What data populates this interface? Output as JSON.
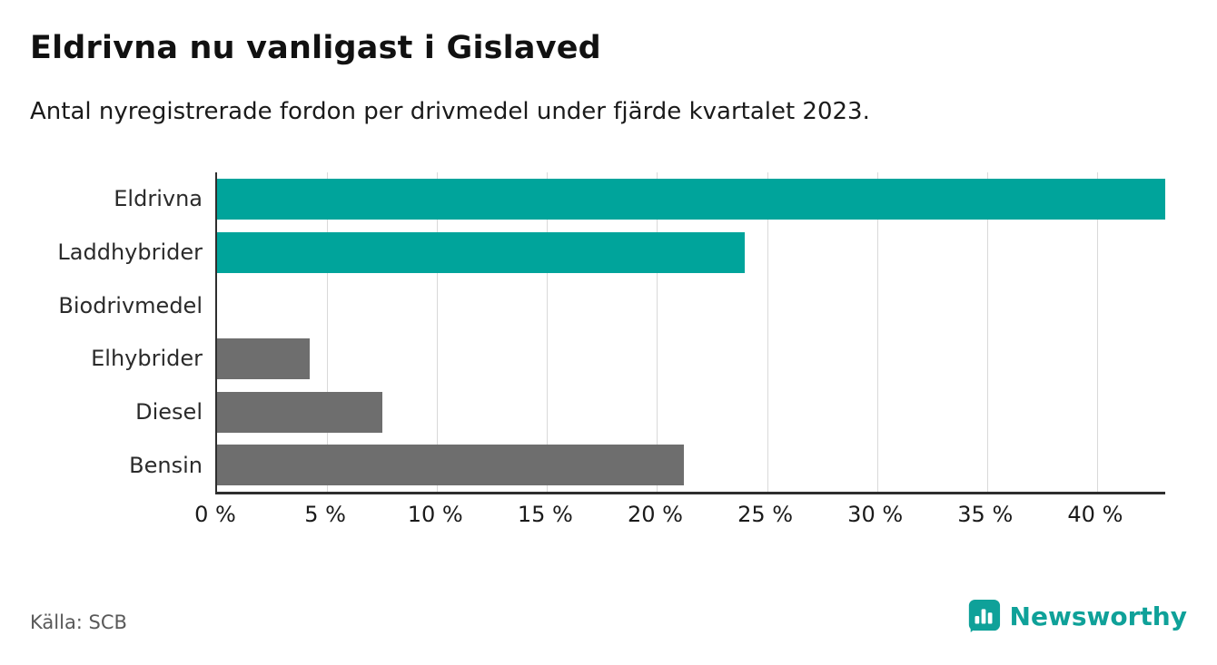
{
  "colors": {
    "accent": "#00A49B",
    "gray": "#6E6E6E",
    "axis": "#2E2E2E",
    "grid": "#D9D9D9",
    "brand_teal": "#0FA199"
  },
  "chart_data": {
    "type": "bar",
    "orientation": "horizontal",
    "title": "Eldrivna nu vanligast i Gislaved",
    "subtitle": "Antal nyregistrerade fordon per drivmedel under fjärde kvartalet 2023.",
    "categories": [
      "Eldrivna",
      "Laddhybrider",
      "Biodrivmedel",
      "Elhybrider",
      "Diesel",
      "Bensin"
    ],
    "values": [
      43.1,
      24.0,
      0,
      4.2,
      7.5,
      21.2
    ],
    "bar_colors": [
      "accent",
      "accent",
      "gray",
      "gray",
      "gray",
      "gray"
    ],
    "x_ticks": [
      0,
      5,
      10,
      15,
      20,
      25,
      30,
      35,
      40
    ],
    "x_tick_labels": [
      "0 %",
      "5 %",
      "10 %",
      "15 %",
      "20 %",
      "25 %",
      "30 %",
      "35 %",
      "40 %"
    ],
    "xlim": [
      0,
      43.1
    ],
    "unit": "%",
    "grid": true,
    "legend": "none"
  },
  "footer": {
    "source": "Källa: SCB",
    "brand": "Newsworthy"
  }
}
